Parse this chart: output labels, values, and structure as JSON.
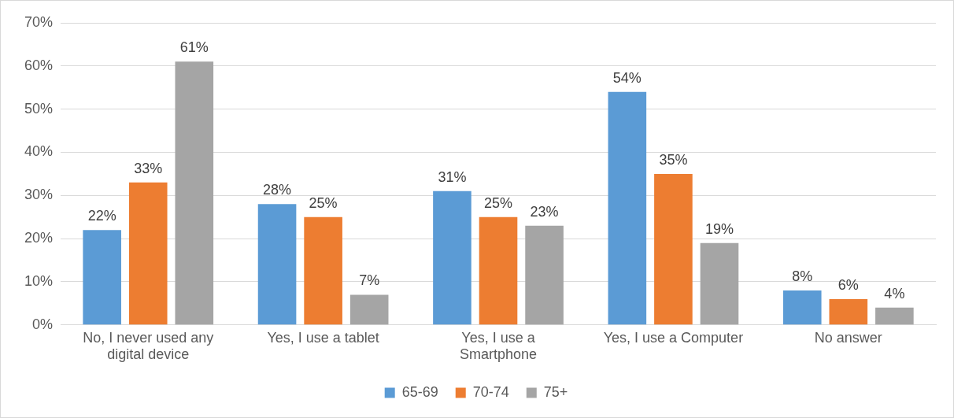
{
  "chart_data": {
    "type": "bar",
    "categories": [
      "No, I never used any digital device",
      "Yes, I use a tablet",
      "Yes, I use a Smartphone",
      "Yes, I use a Computer",
      "No answer"
    ],
    "series": [
      {
        "name": "65-69",
        "color": "#5b9bd5",
        "values": [
          22,
          28,
          31,
          54,
          8
        ],
        "value_labels": [
          "22%",
          "28%",
          "31%",
          "54%",
          "8%"
        ]
      },
      {
        "name": "70-74",
        "color": "#ed7d31",
        "values": [
          33,
          25,
          25,
          35,
          6
        ],
        "value_labels": [
          "33%",
          "25%",
          "25%",
          "35%",
          "6%"
        ]
      },
      {
        "name": "75+",
        "color": "#a5a5a5",
        "values": [
          61,
          7,
          23,
          19,
          4
        ],
        "value_labels": [
          "61%",
          "7%",
          "23%",
          "19%",
          "4%"
        ]
      }
    ],
    "ylim": [
      0,
      70
    ],
    "yticks": [
      {
        "value": 0,
        "label": "0%"
      },
      {
        "value": 10,
        "label": "10%"
      },
      {
        "value": 20,
        "label": "20%"
      },
      {
        "value": 30,
        "label": "30%"
      },
      {
        "value": 40,
        "label": "40%"
      },
      {
        "value": 50,
        "label": "50%"
      },
      {
        "value": 60,
        "label": "60%"
      },
      {
        "value": 70,
        "label": "70%"
      }
    ],
    "grid": "y",
    "legend": "bottom"
  }
}
